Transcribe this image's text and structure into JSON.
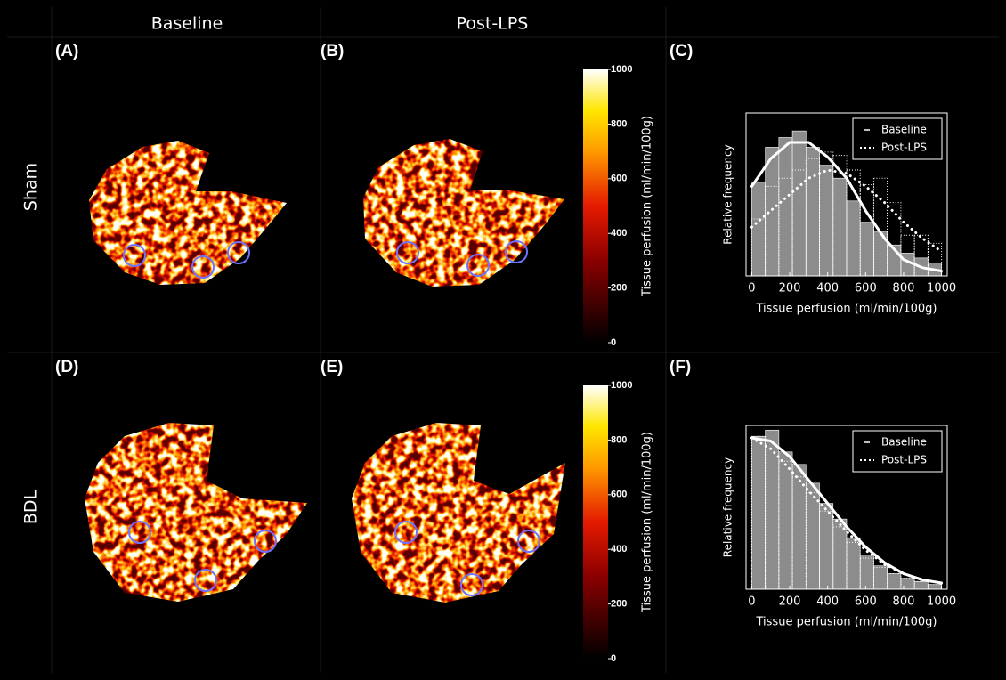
{
  "columns": [
    "Baseline",
    "Post-LPS"
  ],
  "rows": [
    "Sham",
    "BDL"
  ],
  "panels": [
    "(A)",
    "(B)",
    "(C)",
    "(D)",
    "(E)",
    "(F)"
  ],
  "colorbars": [
    {
      "label": "Tissue perfusion (ml/min/100g)",
      "lim": [
        0,
        1000
      ],
      "ticks": [
        0,
        200,
        400,
        600,
        800,
        1000
      ]
    },
    {
      "label": "Tissue perfusion (ml/min/100g)",
      "lim": [
        0,
        1000
      ],
      "ticks": [
        0,
        200,
        400,
        600,
        800,
        1000
      ]
    }
  ],
  "chart_data": [
    {
      "type": "histogram",
      "xlabel": "Tissue perfusion (ml/min/100g)",
      "ylabel": "Relative frequency",
      "xlim": [
        -30,
        1030
      ],
      "xticks": [
        0,
        200,
        400,
        600,
        800,
        1000
      ],
      "ylim": [
        0,
        1
      ],
      "legend": "upper right",
      "bins": [
        0,
        71.4,
        142.9,
        214.3,
        285.7,
        357.1,
        428.6,
        500,
        571.4,
        642.9,
        714.3,
        785.7,
        857.1,
        928.6,
        1000
      ],
      "fit_x": [
        0,
        100,
        200,
        300,
        400,
        500,
        600,
        700,
        800,
        900,
        1000
      ],
      "series": [
        {
          "name": "Baseline",
          "color": "#ffffff",
          "values": [
            0.57,
            0.79,
            0.85,
            0.89,
            0.79,
            0.68,
            0.6,
            0.46,
            0.33,
            0.27,
            0.19,
            0.14,
            0.11,
            0.08
          ],
          "fit": [
            0.55,
            0.72,
            0.82,
            0.82,
            0.73,
            0.6,
            0.4,
            0.23,
            0.1,
            0.05,
            0.03
          ]
        },
        {
          "name": "Post-LPS",
          "color": "#ffffff",
          "values": [
            0.35,
            0.55,
            0.6,
            0.65,
            0.72,
            0.76,
            0.74,
            0.65,
            0.56,
            0.6,
            0.45,
            0.25,
            0.25,
            0.2
          ],
          "fit": [
            0.3,
            0.4,
            0.5,
            0.6,
            0.65,
            0.63,
            0.55,
            0.45,
            0.33,
            0.23,
            0.15
          ]
        }
      ]
    },
    {
      "type": "histogram",
      "xlabel": "Tissue perfusion (ml/min/100g)",
      "ylabel": "Relative frequency",
      "xlim": [
        -30,
        1030
      ],
      "xticks": [
        0,
        200,
        400,
        600,
        800,
        1000
      ],
      "ylim": [
        0,
        1.05
      ],
      "legend": "upper right",
      "bins": [
        0,
        71.4,
        142.9,
        214.3,
        285.7,
        357.1,
        428.6,
        500,
        571.4,
        642.9,
        714.3,
        785.7,
        857.1,
        928.6,
        1000
      ],
      "fit_x": [
        0,
        100,
        200,
        300,
        400,
        500,
        600,
        700,
        800,
        900,
        1000
      ],
      "series": [
        {
          "name": "Baseline",
          "color": "#ffffff",
          "values": [
            0.98,
            1.02,
            0.88,
            0.8,
            0.68,
            0.55,
            0.45,
            0.33,
            0.22,
            0.15,
            0.1,
            0.07,
            0.05,
            0.03
          ],
          "fit": [
            0.97,
            0.95,
            0.85,
            0.7,
            0.55,
            0.4,
            0.27,
            0.17,
            0.1,
            0.06,
            0.04
          ]
        },
        {
          "name": "Post-LPS",
          "color": "#ffffff",
          "values": [
            0.98,
            0.95,
            0.82,
            0.72,
            0.62,
            0.5,
            0.4,
            0.3,
            0.2,
            0.14,
            0.1,
            0.07,
            0.05,
            0.03
          ],
          "fit": [
            0.97,
            0.9,
            0.77,
            0.63,
            0.5,
            0.37,
            0.25,
            0.16,
            0.1,
            0.06,
            0.04
          ]
        }
      ]
    }
  ]
}
